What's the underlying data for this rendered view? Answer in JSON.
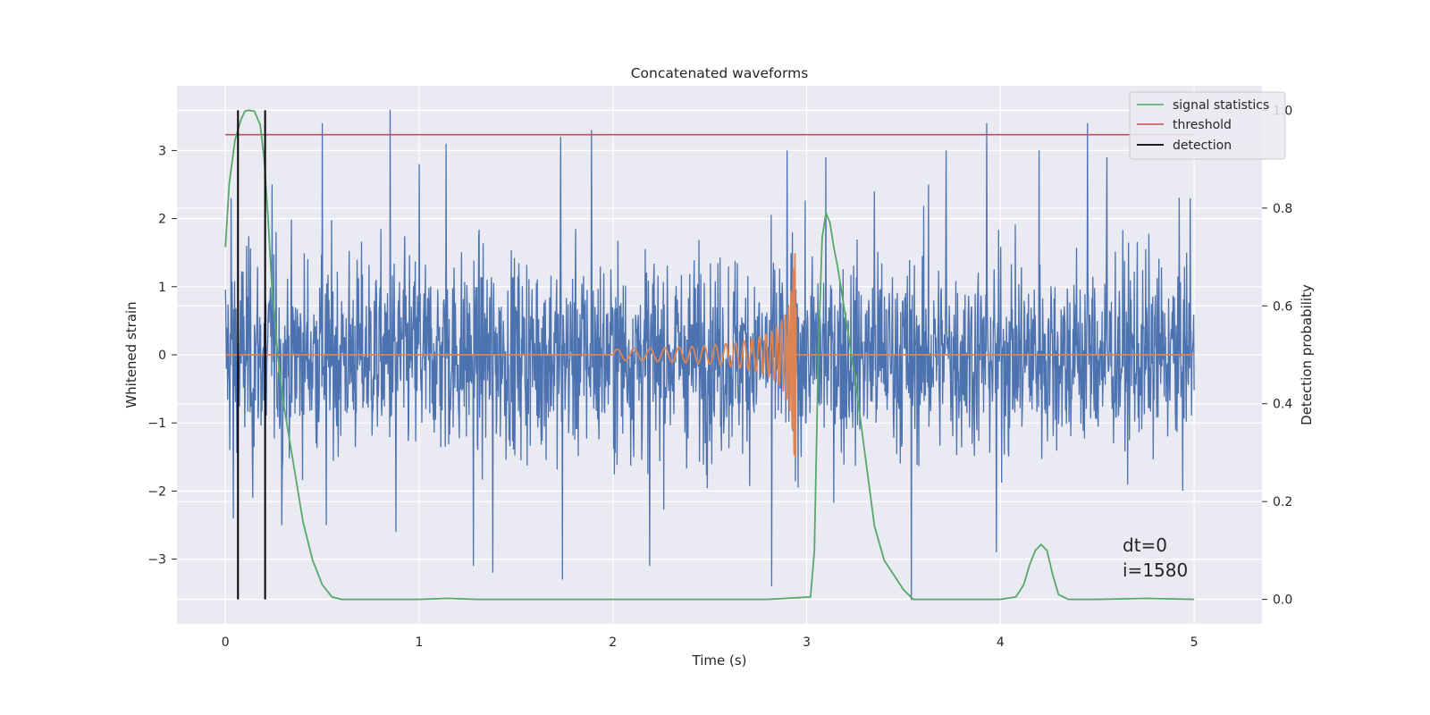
{
  "chart_data": {
    "type": "line",
    "title": "Concatenated waveforms",
    "xlabel": "Time (s)",
    "ylabel": "Whitened strain",
    "y2label": "Detection probability",
    "xlim": [
      -0.25,
      5.35
    ],
    "ylim": [
      -3.95,
      3.95
    ],
    "y2lim": [
      -0.05,
      1.05
    ],
    "xticks": [
      0,
      1,
      2,
      3,
      4,
      5
    ],
    "xtick_labels": [
      "0",
      "1",
      "2",
      "3",
      "4",
      "5"
    ],
    "yticks": [
      3,
      2,
      1,
      0,
      -1,
      -2,
      -3
    ],
    "ytick_labels": [
      "3",
      "2",
      "1",
      "0",
      "−1",
      "−2",
      "−3"
    ],
    "y2ticks": [
      1.0,
      0.8,
      0.6,
      0.4,
      0.2,
      0.0
    ],
    "y2tick_labels": [
      "1.0",
      "0.8",
      "0.6",
      "0.4",
      "0.2",
      "0.0"
    ],
    "grid": true,
    "legend_placement": "upper right",
    "background": "#eaeaf2",
    "series": [
      {
        "key": "strain",
        "axis": "left",
        "color": "#4c72b0",
        "description": "whitened strain noise, dense Gaussian-like samples over 0–5 s",
        "x_range": [
          0,
          5
        ],
        "std": 0.72,
        "samples": 2200,
        "spikes": [
          [
            0.03,
            2.3
          ],
          [
            0.04,
            -2.4
          ],
          [
            0.11,
            1.6
          ],
          [
            0.14,
            -2.1
          ],
          [
            0.24,
            2.5
          ],
          [
            0.29,
            -2.5
          ],
          [
            0.5,
            3.4
          ],
          [
            0.52,
            -2.5
          ],
          [
            0.85,
            3.6
          ],
          [
            0.88,
            -2.6
          ],
          [
            1.0,
            2.8
          ],
          [
            1.14,
            3.1
          ],
          [
            1.28,
            -3.1
          ],
          [
            1.38,
            -3.2
          ],
          [
            1.73,
            3.2
          ],
          [
            1.74,
            -3.3
          ],
          [
            1.89,
            3.3
          ],
          [
            2.19,
            -3.1
          ],
          [
            2.82,
            -3.4
          ],
          [
            2.9,
            3.0
          ],
          [
            3.1,
            2.9
          ],
          [
            3.35,
            2.4
          ],
          [
            3.54,
            -3.6
          ],
          [
            3.63,
            2.5
          ],
          [
            3.72,
            3.0
          ],
          [
            3.93,
            3.4
          ],
          [
            3.98,
            -2.9
          ],
          [
            4.2,
            3.0
          ],
          [
            4.45,
            3.4
          ],
          [
            4.55,
            2.9
          ],
          [
            4.98,
            2.3
          ]
        ]
      },
      {
        "key": "chirp",
        "axis": "left",
        "color": "#dd8452",
        "description": "injected inspiral chirp, zero elsewhere",
        "chirp_start": 2.0,
        "chirp_end": 2.945,
        "amp_start": 0.08,
        "amp_peak": 1.5
      },
      {
        "key": "signal_statistics",
        "name": "signal statistics",
        "axis": "right",
        "color": "#55a868",
        "x": [
          0.0,
          0.02,
          0.05,
          0.08,
          0.1,
          0.12,
          0.15,
          0.18,
          0.2,
          0.22,
          0.24,
          0.27,
          0.3,
          0.35,
          0.4,
          0.45,
          0.5,
          0.55,
          0.6,
          0.8,
          1.0,
          1.15,
          1.3,
          1.6,
          2.0,
          2.5,
          2.8,
          3.02,
          3.04,
          3.06,
          3.08,
          3.1,
          3.12,
          3.14,
          3.16,
          3.2,
          3.25,
          3.3,
          3.35,
          3.4,
          3.5,
          3.55,
          3.6,
          4.0,
          4.08,
          4.12,
          4.15,
          4.18,
          4.21,
          4.24,
          4.27,
          4.3,
          4.35,
          4.5,
          4.75,
          5.0
        ],
        "y": [
          0.72,
          0.85,
          0.94,
          0.98,
          0.998,
          1.0,
          0.998,
          0.97,
          0.9,
          0.78,
          0.64,
          0.5,
          0.4,
          0.28,
          0.16,
          0.08,
          0.03,
          0.005,
          0.0,
          0.0,
          0.0,
          0.002,
          0.0,
          0.0,
          0.0,
          0.0,
          0.0,
          0.005,
          0.1,
          0.5,
          0.74,
          0.79,
          0.77,
          0.72,
          0.68,
          0.58,
          0.45,
          0.3,
          0.15,
          0.08,
          0.02,
          0.0,
          0.0,
          0.0,
          0.005,
          0.03,
          0.07,
          0.1,
          0.112,
          0.1,
          0.05,
          0.01,
          0.0,
          0.0,
          0.002,
          0.0
        ]
      },
      {
        "key": "threshold",
        "name": "threshold",
        "axis": "right",
        "color": "#c44e52",
        "x": [
          0,
          5
        ],
        "y": [
          0.95,
          0.95
        ]
      },
      {
        "key": "detection",
        "name": "detection",
        "axis": "right",
        "color": "#000000",
        "vlines": [
          0.065,
          0.205
        ],
        "y": [
          0,
          1
        ]
      }
    ],
    "legend": [
      "signal statistics",
      "threshold",
      "detection"
    ],
    "annotation": {
      "line1": "dt=0",
      "line2": "i=1580"
    }
  }
}
